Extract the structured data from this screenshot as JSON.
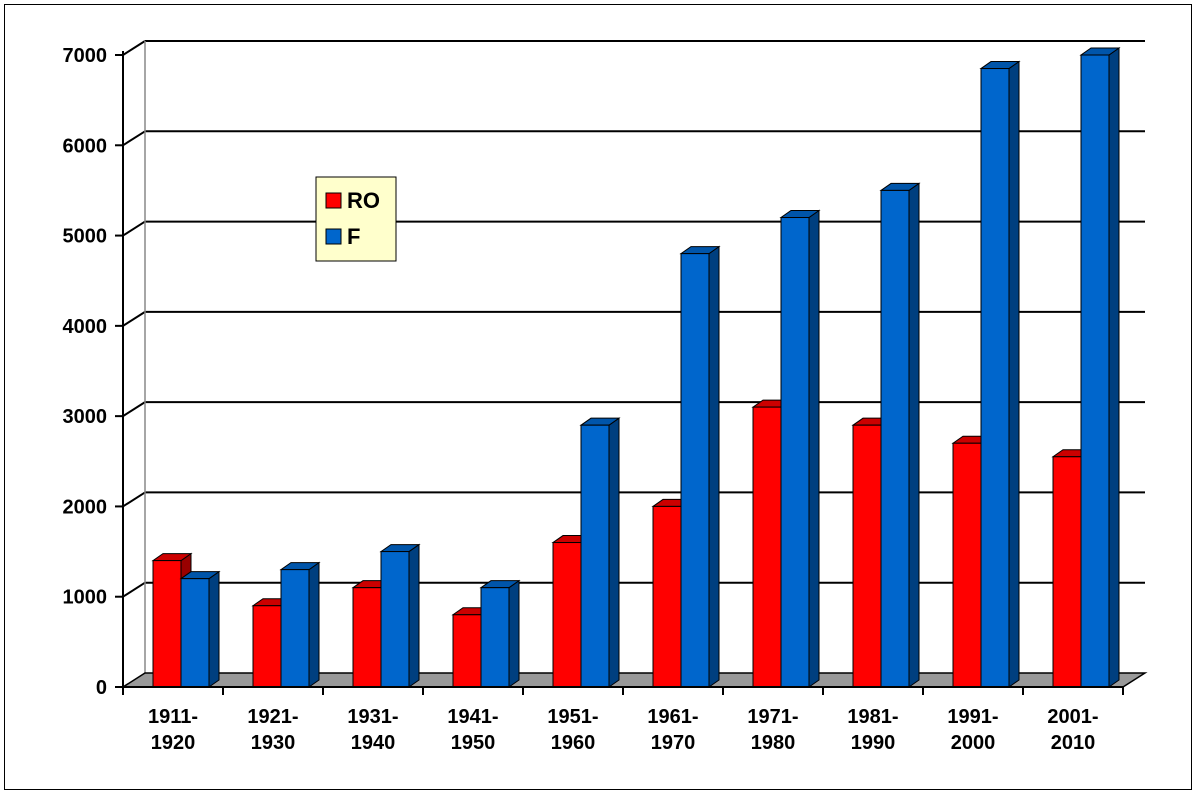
{
  "chart_data": {
    "type": "bar",
    "title": "",
    "xlabel": "",
    "ylabel": "",
    "ylim": [
      0,
      7000
    ],
    "yticks": [
      "0",
      "1000",
      "2000",
      "3000",
      "4000",
      "5000",
      "6000",
      "7000"
    ],
    "grid": true,
    "legend_position": "upper-left",
    "categories": [
      [
        "1911-",
        "1920"
      ],
      [
        "1921-",
        "1930"
      ],
      [
        "1931-",
        "1940"
      ],
      [
        "1941-",
        "1950"
      ],
      [
        "1951-",
        "1960"
      ],
      [
        "1961-",
        "1970"
      ],
      [
        "1971-",
        "1980"
      ],
      [
        "1981-",
        "1990"
      ],
      [
        "1991-",
        "2000"
      ],
      [
        "2001-",
        "2010"
      ]
    ],
    "series": [
      {
        "name": "RO",
        "color": "#ff0000",
        "values": [
          1400,
          900,
          1100,
          800,
          1600,
          2000,
          3100,
          2900,
          2700,
          2550
        ]
      },
      {
        "name": "F",
        "color": "#0066cc",
        "values": [
          1200,
          1300,
          1500,
          1100,
          2900,
          4800,
          5200,
          5500,
          6850,
          7000
        ]
      }
    ],
    "colors": {
      "floor": "#999999",
      "legend_bg": "#ffffcc",
      "red_top": "#cc0000",
      "red_side": "#990000",
      "blue_top": "#0055aa",
      "blue_side": "#003f7f",
      "grid": "#000000"
    }
  }
}
